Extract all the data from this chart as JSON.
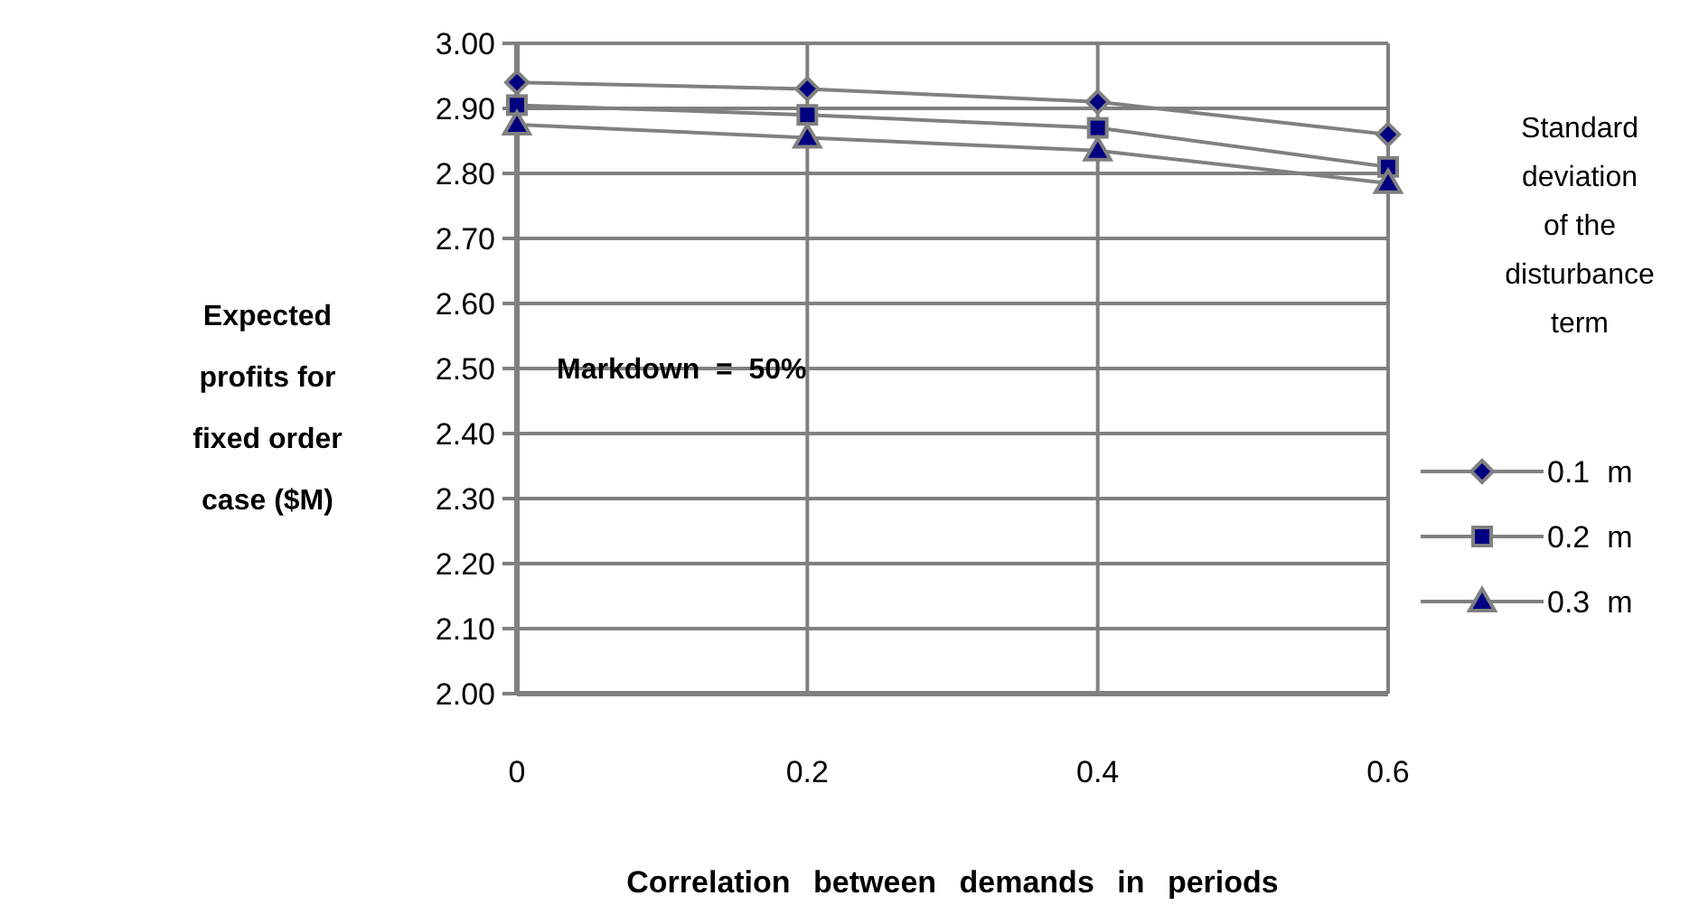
{
  "chart_data": {
    "type": "line",
    "xlabel": "Correlation between demands in periods",
    "ylabel": "Expected profits for fixed order case ($M)",
    "legend_title": "Standard deviation of the disturbance term",
    "annotations": [
      "Markdown  =  50%"
    ],
    "x": [
      0,
      0.2,
      0.4,
      0.6
    ],
    "xlim": [
      0,
      0.6
    ],
    "xticks": [
      0,
      0.2,
      0.4,
      0.6
    ],
    "ylim": [
      2.0,
      3.0
    ],
    "yticks": [
      {
        "value": 2.0,
        "label": "2.00"
      },
      {
        "value": 2.1,
        "label": "2.10"
      },
      {
        "value": 2.2,
        "label": "2.20"
      },
      {
        "value": 2.3,
        "label": "2.30"
      },
      {
        "value": 2.4,
        "label": "2.40"
      },
      {
        "value": 2.5,
        "label": "2.50"
      },
      {
        "value": 2.6,
        "label": "2.60"
      },
      {
        "value": 2.7,
        "label": "2.70"
      },
      {
        "value": 2.8,
        "label": "2.80"
      },
      {
        "value": 2.9,
        "label": "2.90"
      },
      {
        "value": 3.0,
        "label": "3.00"
      }
    ],
    "grid": true,
    "legend": "right",
    "series": [
      {
        "name": "0.1  m",
        "color": "#000080",
        "marker": "diamond",
        "values": [
          2.94,
          2.93,
          2.91,
          2.86
        ]
      },
      {
        "name": "0.2  m",
        "color": "#000080",
        "marker": "square",
        "values": [
          2.905,
          2.89,
          2.87,
          2.81
        ]
      },
      {
        "name": "0.3  m",
        "color": "#000080",
        "marker": "triangle",
        "values": [
          2.875,
          2.855,
          2.835,
          2.785
        ]
      }
    ]
  }
}
